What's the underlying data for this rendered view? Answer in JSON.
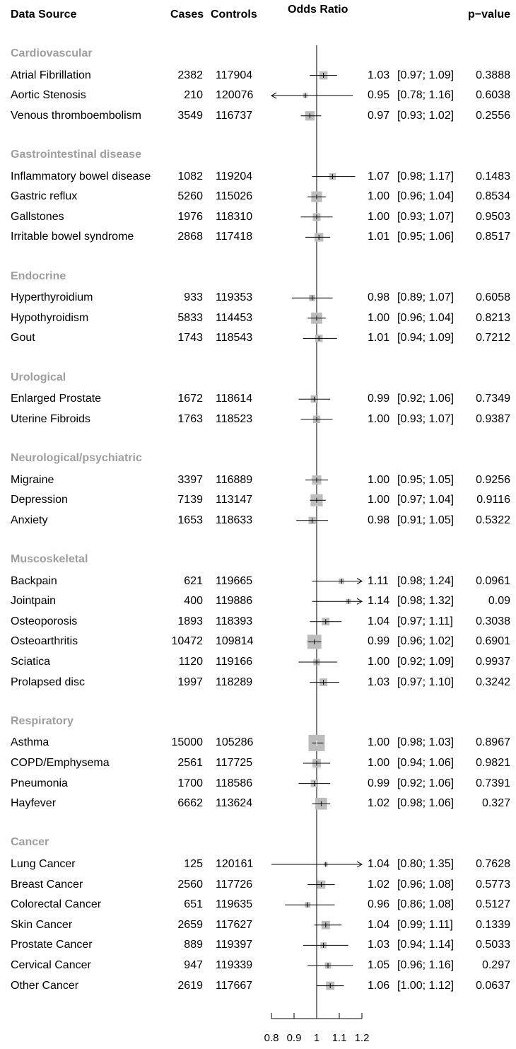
{
  "headers": {
    "data_source": "Data Source",
    "cases": "Cases",
    "controls": "Controls",
    "odds_ratio": "Odds Ratio",
    "p_value": "p−value"
  },
  "chart_data": {
    "type": "forest",
    "xlim": [
      0.8,
      1.2
    ],
    "reference_line": 1,
    "x_ticks": [
      "0.8",
      "0.9",
      "1",
      "1.1",
      "1.2"
    ],
    "x_tick_values": [
      0.8,
      0.9,
      1.0,
      1.1,
      1.2
    ],
    "box_color": "#bdbdbd",
    "groups": [
      {
        "name": "Cardiovascular",
        "rows": [
          {
            "label": "Atrial Fibrillation",
            "cases": "2382",
            "controls": "117904",
            "or": 1.03,
            "lower": 0.97,
            "upper": 1.09,
            "or_text": "1.03",
            "ci_text": "[0.97; 1.09]",
            "p": "0.3888"
          },
          {
            "label": "Aortic Stenosis",
            "cases": "210",
            "controls": "120076",
            "or": 0.95,
            "lower": 0.78,
            "upper": 1.16,
            "or_text": "0.95",
            "ci_text": "[0.78; 1.16]",
            "p": "0.6038"
          },
          {
            "label": "Venous thromboembolism",
            "cases": "3549",
            "controls": "116737",
            "or": 0.97,
            "lower": 0.93,
            "upper": 1.02,
            "or_text": "0.97",
            "ci_text": "[0.93; 1.02]",
            "p": "0.2556"
          }
        ]
      },
      {
        "name": "Gastrointestinal disease",
        "rows": [
          {
            "label": "Inflammatory bowel disease",
            "cases": "1082",
            "controls": "119204",
            "or": 1.07,
            "lower": 0.98,
            "upper": 1.17,
            "or_text": "1.07",
            "ci_text": "[0.98; 1.17]",
            "p": "0.1483"
          },
          {
            "label": "Gastric reflux",
            "cases": "5260",
            "controls": "115026",
            "or": 1.0,
            "lower": 0.96,
            "upper": 1.04,
            "or_text": "1.00",
            "ci_text": "[0.96; 1.04]",
            "p": "0.8534"
          },
          {
            "label": "Gallstones",
            "cases": "1976",
            "controls": "118310",
            "or": 1.0,
            "lower": 0.93,
            "upper": 1.07,
            "or_text": "1.00",
            "ci_text": "[0.93; 1.07]",
            "p": "0.9503"
          },
          {
            "label": "Irritable bowel syndrome",
            "cases": "2868",
            "controls": "117418",
            "or": 1.01,
            "lower": 0.95,
            "upper": 1.06,
            "or_text": "1.01",
            "ci_text": "[0.95; 1.06]",
            "p": "0.8517"
          }
        ]
      },
      {
        "name": "Endocrine",
        "rows": [
          {
            "label": "Hyperthyroidium",
            "cases": "933",
            "controls": "119353",
            "or": 0.98,
            "lower": 0.89,
            "upper": 1.07,
            "or_text": "0.98",
            "ci_text": "[0.89; 1.07]",
            "p": "0.6058"
          },
          {
            "label": "Hypothyroidism",
            "cases": "5833",
            "controls": "114453",
            "or": 1.0,
            "lower": 0.96,
            "upper": 1.04,
            "or_text": "1.00",
            "ci_text": "[0.96; 1.04]",
            "p": "0.8213"
          },
          {
            "label": "Gout",
            "cases": "1743",
            "controls": "118543",
            "or": 1.01,
            "lower": 0.94,
            "upper": 1.09,
            "or_text": "1.01",
            "ci_text": "[0.94; 1.09]",
            "p": "0.7212"
          }
        ]
      },
      {
        "name": "Urological",
        "rows": [
          {
            "label": "Enlarged Prostate",
            "cases": "1672",
            "controls": "118614",
            "or": 0.99,
            "lower": 0.92,
            "upper": 1.06,
            "or_text": "0.99",
            "ci_text": "[0.92; 1.06]",
            "p": "0.7349"
          },
          {
            "label": "Uterine Fibroids",
            "cases": "1763",
            "controls": "118523",
            "or": 1.0,
            "lower": 0.93,
            "upper": 1.07,
            "or_text": "1.00",
            "ci_text": "[0.93; 1.07]",
            "p": "0.9387"
          }
        ]
      },
      {
        "name": "Neurological/psychiatric",
        "rows": [
          {
            "label": "Migraine",
            "cases": "3397",
            "controls": "116889",
            "or": 1.0,
            "lower": 0.95,
            "upper": 1.05,
            "or_text": "1.00",
            "ci_text": "[0.95; 1.05]",
            "p": "0.9256"
          },
          {
            "label": "Depression",
            "cases": "7139",
            "controls": "113147",
            "or": 1.0,
            "lower": 0.97,
            "upper": 1.04,
            "or_text": "1.00",
            "ci_text": "[0.97; 1.04]",
            "p": "0.9116"
          },
          {
            "label": "Anxiety",
            "cases": "1653",
            "controls": "118633",
            "or": 0.98,
            "lower": 0.91,
            "upper": 1.05,
            "or_text": "0.98",
            "ci_text": "[0.91; 1.05]",
            "p": "0.5322"
          }
        ]
      },
      {
        "name": "Muscoskeletal",
        "rows": [
          {
            "label": "Backpain",
            "cases": "621",
            "controls": "119665",
            "or": 1.11,
            "lower": 0.98,
            "upper": 1.24,
            "or_text": "1.11",
            "ci_text": "[0.98; 1.24]",
            "p": "0.0961"
          },
          {
            "label": "Jointpain",
            "cases": "400",
            "controls": "119886",
            "or": 1.14,
            "lower": 0.98,
            "upper": 1.32,
            "or_text": "1.14",
            "ci_text": "[0.98; 1.32]",
            "p": "0.09"
          },
          {
            "label": "Osteoporosis",
            "cases": "1893",
            "controls": "118393",
            "or": 1.04,
            "lower": 0.97,
            "upper": 1.11,
            "or_text": "1.04",
            "ci_text": "[0.97; 1.11]",
            "p": "0.3038"
          },
          {
            "label": "Osteoarthritis",
            "cases": "10472",
            "controls": "109814",
            "or": 0.99,
            "lower": 0.96,
            "upper": 1.02,
            "or_text": "0.99",
            "ci_text": "[0.96; 1.02]",
            "p": "0.6901"
          },
          {
            "label": "Sciatica",
            "cases": "1120",
            "controls": "119166",
            "or": 1.0,
            "lower": 0.92,
            "upper": 1.09,
            "or_text": "1.00",
            "ci_text": "[0.92; 1.09]",
            "p": "0.9937"
          },
          {
            "label": "Prolapsed disc",
            "cases": "1997",
            "controls": "118289",
            "or": 1.03,
            "lower": 0.97,
            "upper": 1.1,
            "or_text": "1.03",
            "ci_text": "[0.97; 1.10]",
            "p": "0.3242"
          }
        ]
      },
      {
        "name": "Respiratory",
        "rows": [
          {
            "label": "Asthma",
            "cases": "15000",
            "controls": "105286",
            "or": 1.0,
            "lower": 0.98,
            "upper": 1.03,
            "or_text": "1.00",
            "ci_text": "[0.98; 1.03]",
            "p": "0.8967"
          },
          {
            "label": "COPD/Emphysema",
            "cases": "2561",
            "controls": "117725",
            "or": 1.0,
            "lower": 0.94,
            "upper": 1.06,
            "or_text": "1.00",
            "ci_text": "[0.94; 1.06]",
            "p": "0.9821"
          },
          {
            "label": "Pneumonia",
            "cases": "1700",
            "controls": "118586",
            "or": 0.99,
            "lower": 0.92,
            "upper": 1.06,
            "or_text": "0.99",
            "ci_text": "[0.92; 1.06]",
            "p": "0.7391"
          },
          {
            "label": "Hayfever",
            "cases": "6662",
            "controls": "113624",
            "or": 1.02,
            "lower": 0.98,
            "upper": 1.06,
            "or_text": "1.02",
            "ci_text": "[0.98; 1.06]",
            "p": "0.327"
          }
        ]
      },
      {
        "name": "Cancer",
        "rows": [
          {
            "label": "Lung Cancer",
            "cases": "125",
            "controls": "120161",
            "or": 1.04,
            "lower": 0.8,
            "upper": 1.35,
            "or_text": "1.04",
            "ci_text": "[0.80; 1.35]",
            "p": "0.7628"
          },
          {
            "label": "Breast Cancer",
            "cases": "2560",
            "controls": "117726",
            "or": 1.02,
            "lower": 0.96,
            "upper": 1.08,
            "or_text": "1.02",
            "ci_text": "[0.96; 1.08]",
            "p": "0.5773"
          },
          {
            "label": "Colorectal Cancer",
            "cases": "651",
            "controls": "119635",
            "or": 0.96,
            "lower": 0.86,
            "upper": 1.08,
            "or_text": "0.96",
            "ci_text": "[0.86; 1.08]",
            "p": "0.5127"
          },
          {
            "label": "Skin Cancer",
            "cases": "2659",
            "controls": "117627",
            "or": 1.04,
            "lower": 0.99,
            "upper": 1.11,
            "or_text": "1.04",
            "ci_text": "[0.99; 1.11]",
            "p": "0.1339"
          },
          {
            "label": "Prostate Cancer",
            "cases": "889",
            "controls": "119397",
            "or": 1.03,
            "lower": 0.94,
            "upper": 1.14,
            "or_text": "1.03",
            "ci_text": "[0.94; 1.14]",
            "p": "0.5033"
          },
          {
            "label": "Cervical Cancer",
            "cases": "947",
            "controls": "119339",
            "or": 1.05,
            "lower": 0.96,
            "upper": 1.16,
            "or_text": "1.05",
            "ci_text": "[0.96; 1.16]",
            "p": "0.297"
          },
          {
            "label": "Other Cancer",
            "cases": "2619",
            "controls": "117667",
            "or": 1.06,
            "lower": 1.0,
            "upper": 1.12,
            "or_text": "1.06",
            "ci_text": "[1.00; 1.12]",
            "p": "0.0637"
          }
        ]
      }
    ]
  }
}
